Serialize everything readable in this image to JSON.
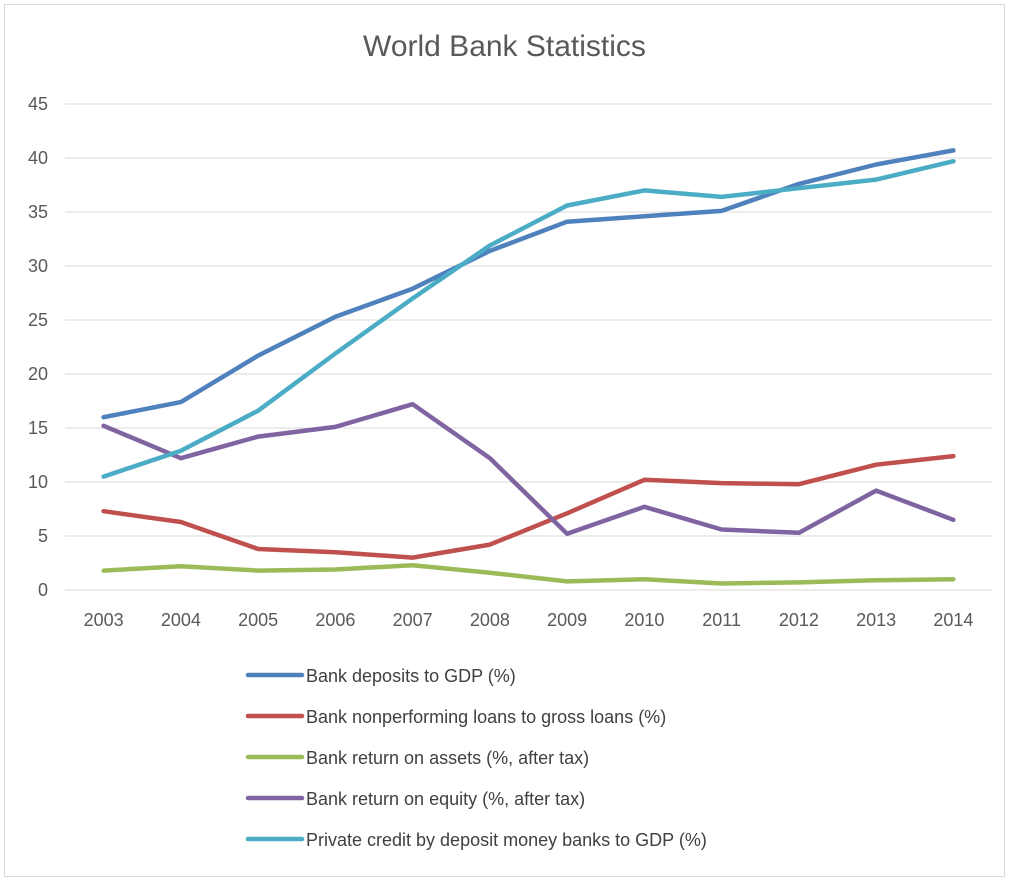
{
  "chart_data": {
    "type": "line",
    "title": "World Bank Statistics",
    "xlabel": "",
    "ylabel": "",
    "categories": [
      "2003",
      "2004",
      "2005",
      "2006",
      "2007",
      "2008",
      "2009",
      "2010",
      "2011",
      "2012",
      "2013",
      "2014"
    ],
    "ylim": [
      0,
      45
    ],
    "yticks": [
      0,
      5,
      10,
      15,
      20,
      25,
      30,
      35,
      40,
      45
    ],
    "grid": true,
    "legend_position": "bottom",
    "series": [
      {
        "name": "Bank deposits to GDP (%)",
        "color": "#4f81bd",
        "values": [
          16.0,
          17.4,
          21.7,
          25.3,
          27.9,
          31.4,
          34.1,
          34.6,
          35.1,
          37.6,
          39.4,
          40.7
        ]
      },
      {
        "name": "Bank nonperforming loans to gross loans (%)",
        "color": "#c0504d",
        "values": [
          7.3,
          6.3,
          3.8,
          3.5,
          3.0,
          4.2,
          7.1,
          10.2,
          9.9,
          9.8,
          11.6,
          12.4
        ]
      },
      {
        "name": "Bank return on assets (%, after tax)",
        "color": "#9bbb59",
        "values": [
          1.8,
          2.2,
          1.8,
          1.9,
          2.3,
          1.6,
          0.8,
          1.0,
          0.6,
          0.7,
          0.9,
          1.0
        ]
      },
      {
        "name": "Bank return on equity (%, after tax)",
        "color": "#8064a2",
        "values": [
          15.2,
          12.2,
          14.2,
          15.1,
          17.2,
          12.2,
          5.2,
          7.7,
          5.6,
          5.3,
          9.2,
          6.5
        ]
      },
      {
        "name": "Private credit by deposit money banks to GDP (%)",
        "color": "#4bacc6",
        "values": [
          10.5,
          12.9,
          16.6,
          21.9,
          27.0,
          31.9,
          35.6,
          37.0,
          36.4,
          37.2,
          38.0,
          39.7
        ]
      }
    ]
  }
}
